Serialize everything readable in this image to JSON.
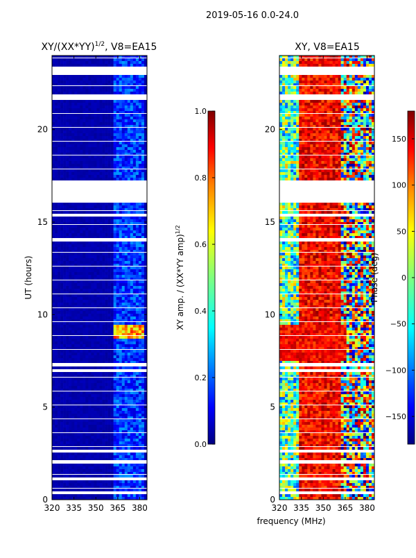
{
  "suptitle": "2019-05-16 0.0-24.0",
  "shared_xlabel": "frequency (MHz)",
  "colors": {
    "jet": [
      "#00007f",
      "#0000ff",
      "#007fff",
      "#00ffff",
      "#7fff7f",
      "#ffff00",
      "#ff7f00",
      "#ff0000",
      "#7f0000"
    ],
    "gap": "#ffffff"
  },
  "chart_data": [
    {
      "type": "heatmap",
      "title_main": "XY/(XX*YY)",
      "title_exp": "1/2",
      "title_tail": ", V8=EA15",
      "xlabel": "",
      "ylabel": "UT (hours)",
      "xlim": [
        320,
        385
      ],
      "ylim": [
        0,
        24
      ],
      "xticks": [
        320,
        335,
        350,
        365,
        380
      ],
      "yticks": [
        0,
        5,
        10,
        15,
        20
      ],
      "colorbar": {
        "label_main": "XY amp. / (XX*YY amp)",
        "label_exp": "1/2",
        "range": [
          0.0,
          1.0
        ],
        "ticks": [
          "0.0",
          "0.2",
          "0.4",
          "0.6",
          "0.8",
          "1.0"
        ],
        "tick_values": [
          0.0,
          0.2,
          0.4,
          0.6,
          0.8,
          1.0
        ]
      },
      "description_values": {
        "background": 0.05,
        "band_365_385": 0.2,
        "bright_hour_9": 0.8
      }
    },
    {
      "type": "heatmap",
      "title": "XY, V8=EA15",
      "xlabel": "frequency (MHz)",
      "ylabel": "",
      "xlim": [
        320,
        385
      ],
      "ylim": [
        0,
        24
      ],
      "xticks": [
        320,
        335,
        350,
        365,
        380
      ],
      "yticks": [
        0,
        5,
        10,
        15,
        20
      ],
      "colorbar": {
        "label": "Phase (deg)",
        "range": [
          -180,
          180
        ],
        "ticks": [
          "150",
          "100",
          "50",
          "0",
          "−50",
          "−100",
          "−150"
        ],
        "tick_values": [
          150,
          100,
          50,
          0,
          -50,
          -100,
          -150
        ]
      }
    }
  ],
  "gaps_hours": [
    [
      23.0,
      23.35
    ],
    [
      21.6,
      21.95
    ],
    [
      16.0,
      17.2
    ],
    [
      15.3,
      15.4
    ],
    [
      14.0,
      14.1
    ],
    [
      9.4,
      9.5
    ],
    [
      7.2,
      7.35
    ],
    [
      6.9,
      7.0
    ],
    [
      2.55,
      2.7
    ],
    [
      2.0,
      2.1
    ],
    [
      1.1,
      1.2
    ],
    [
      19.3,
      19.35
    ],
    [
      18.0,
      18.05
    ],
    [
      12.3,
      12.35
    ],
    [
      4.5,
      4.55
    ],
    [
      0.35,
      0.4
    ]
  ]
}
